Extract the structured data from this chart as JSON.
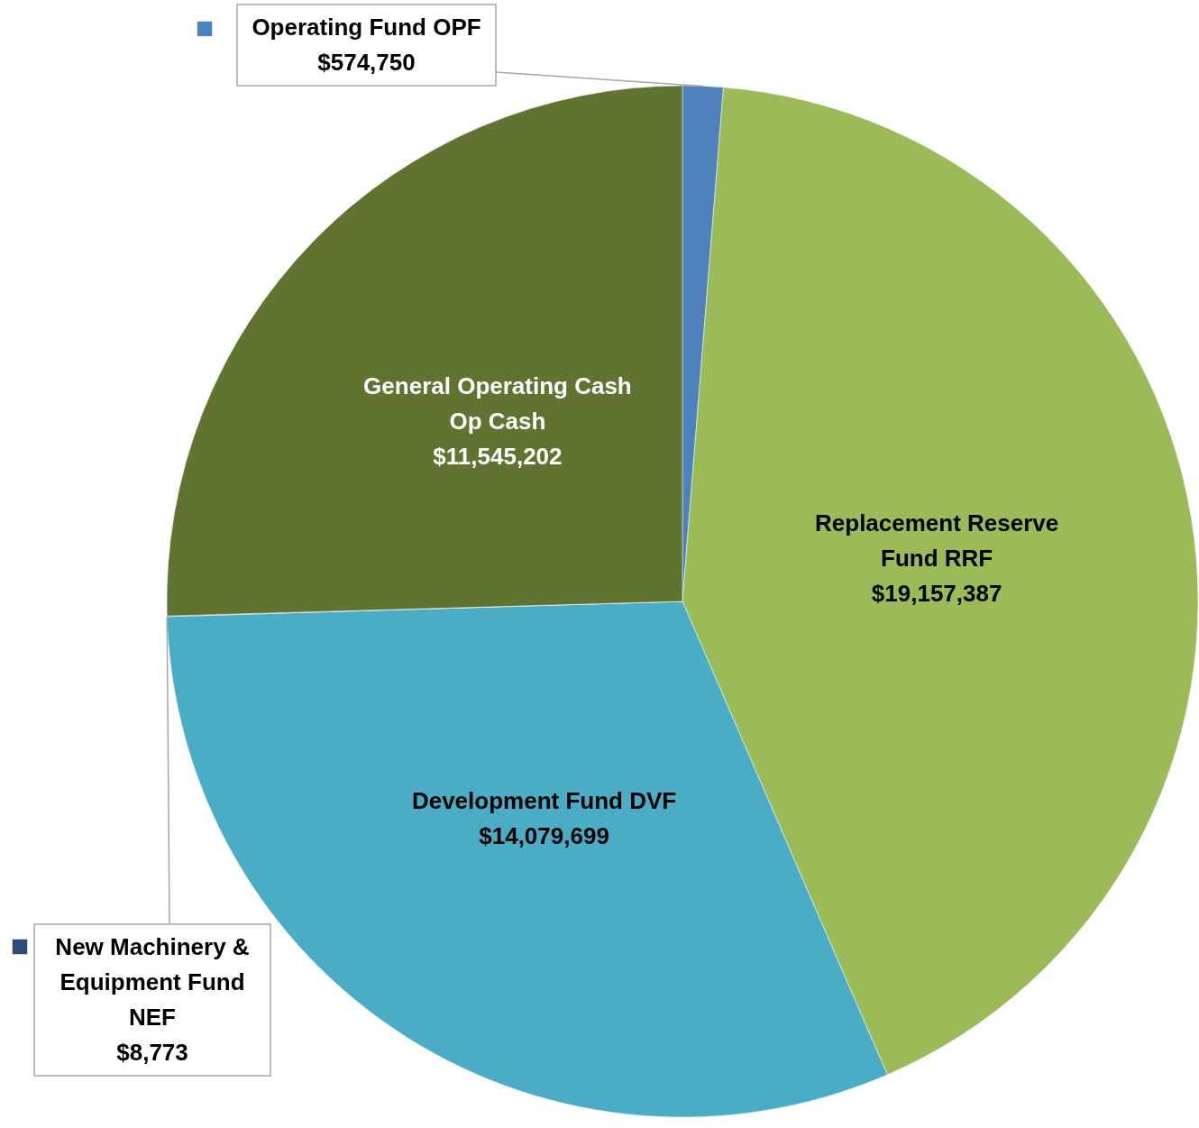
{
  "chart_data": {
    "type": "pie",
    "categories": [
      "Operating Fund OPF",
      "Replacement Reserve Fund RRF",
      "Development Fund DVF",
      "New Machinery & Equipment Fund NEF",
      "General Operating Cash Op Cash"
    ],
    "values": [
      574750,
      19157387,
      14079699,
      8773,
      11545202
    ],
    "colors": [
      "#4f81bd",
      "#9bbb59",
      "#4bacc6",
      "#2c4d75",
      "#617331"
    ],
    "value_labels": [
      "$574,750",
      "$19,157,387",
      "$14,079,699",
      "$8,773",
      "$11,545,202"
    ],
    "legend": "left"
  }
}
